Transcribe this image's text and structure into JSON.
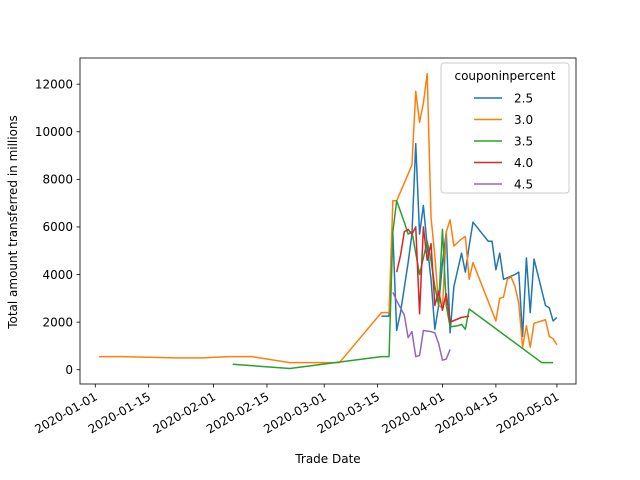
{
  "chart_data": {
    "type": "line",
    "title": "",
    "xlabel": "Trade Date",
    "ylabel": "Total amount transferred in millions",
    "x_axis_type": "date",
    "xlim": [
      "2019-12-28",
      "2020-05-06"
    ],
    "ylim": [
      -600,
      13100
    ],
    "x_ticks": [
      "2020-01-01",
      "2020-01-15",
      "2020-02-01",
      "2020-02-15",
      "2020-03-01",
      "2020-03-15",
      "2020-04-01",
      "2020-04-15",
      "2020-05-01"
    ],
    "y_ticks": [
      0,
      2000,
      4000,
      6000,
      8000,
      10000,
      12000
    ],
    "grid": false,
    "legend": {
      "title": "couponinpercent",
      "position": "top-right"
    },
    "series": [
      {
        "name": "2.5",
        "color": "#1f77b4",
        "points": [
          [
            "2020-03-16",
            2250
          ],
          [
            "2020-03-18",
            2250
          ],
          [
            "2020-03-19",
            5700
          ],
          [
            "2020-03-20",
            1650
          ],
          [
            "2020-03-21",
            2400
          ],
          [
            "2020-03-23",
            4500
          ],
          [
            "2020-03-24",
            5700
          ],
          [
            "2020-03-25",
            9500
          ],
          [
            "2020-03-26",
            5700
          ],
          [
            "2020-03-27",
            6900
          ],
          [
            "2020-03-28",
            5200
          ],
          [
            "2020-03-29",
            3800
          ],
          [
            "2020-03-30",
            1700
          ],
          [
            "2020-03-31",
            2700
          ],
          [
            "2020-04-01",
            4500
          ],
          [
            "2020-04-02",
            5800
          ],
          [
            "2020-04-03",
            1550
          ],
          [
            "2020-04-04",
            3500
          ],
          [
            "2020-04-06",
            4900
          ],
          [
            "2020-04-07",
            4100
          ],
          [
            "2020-04-08",
            5200
          ],
          [
            "2020-04-09",
            6200
          ],
          [
            "2020-04-13",
            5400
          ],
          [
            "2020-04-14",
            5400
          ],
          [
            "2020-04-15",
            4200
          ],
          [
            "2020-04-16",
            4900
          ],
          [
            "2020-04-17",
            3800
          ],
          [
            "2020-04-20",
            4000
          ],
          [
            "2020-04-21",
            4100
          ],
          [
            "2020-04-22",
            1400
          ],
          [
            "2020-04-23",
            4700
          ],
          [
            "2020-04-24",
            2400
          ],
          [
            "2020-04-25",
            4650
          ],
          [
            "2020-04-28",
            2700
          ],
          [
            "2020-04-29",
            2600
          ],
          [
            "2020-04-30",
            2050
          ],
          [
            "2020-05-01",
            2200
          ]
        ]
      },
      {
        "name": "3.0",
        "color": "#ff7f0e",
        "points": [
          [
            "2020-01-02",
            550
          ],
          [
            "2020-01-08",
            550
          ],
          [
            "2020-01-22",
            500
          ],
          [
            "2020-01-29",
            500
          ],
          [
            "2020-02-05",
            550
          ],
          [
            "2020-02-11",
            550
          ],
          [
            "2020-02-21",
            300
          ],
          [
            "2020-03-05",
            300
          ],
          [
            "2020-03-16",
            2400
          ],
          [
            "2020-03-18",
            2400
          ],
          [
            "2020-03-19",
            7100
          ],
          [
            "2020-03-20",
            7100
          ],
          [
            "2020-03-24",
            8600
          ],
          [
            "2020-03-25",
            11700
          ],
          [
            "2020-03-26",
            10400
          ],
          [
            "2020-03-27",
            11200
          ],
          [
            "2020-03-28",
            12450
          ],
          [
            "2020-03-29",
            6400
          ],
          [
            "2020-03-30",
            4800
          ],
          [
            "2020-03-31",
            2700
          ],
          [
            "2020-04-01",
            2600
          ],
          [
            "2020-04-02",
            5800
          ],
          [
            "2020-04-03",
            6300
          ],
          [
            "2020-04-04",
            5200
          ],
          [
            "2020-04-06",
            5500
          ],
          [
            "2020-04-07",
            5600
          ],
          [
            "2020-04-08",
            3800
          ],
          [
            "2020-04-09",
            4500
          ],
          [
            "2020-04-15",
            2050
          ],
          [
            "2020-04-16",
            3000
          ],
          [
            "2020-04-17",
            3050
          ],
          [
            "2020-04-18",
            3800
          ],
          [
            "2020-04-19",
            3900
          ],
          [
            "2020-04-20",
            3500
          ],
          [
            "2020-04-21",
            2800
          ],
          [
            "2020-04-22",
            950
          ],
          [
            "2020-04-23",
            1850
          ],
          [
            "2020-04-24",
            950
          ],
          [
            "2020-04-25",
            1950
          ],
          [
            "2020-04-28",
            2100
          ],
          [
            "2020-04-29",
            1400
          ],
          [
            "2020-04-30",
            1300
          ],
          [
            "2020-05-01",
            1050
          ]
        ]
      },
      {
        "name": "3.5",
        "color": "#2ca02c",
        "points": [
          [
            "2020-02-06",
            230
          ],
          [
            "2020-02-21",
            50
          ],
          [
            "2020-03-16",
            550
          ],
          [
            "2020-03-18",
            550
          ],
          [
            "2020-03-19",
            5800
          ],
          [
            "2020-03-20",
            7100
          ],
          [
            "2020-03-22",
            6200
          ],
          [
            "2020-03-23",
            5700
          ],
          [
            "2020-03-24",
            5800
          ],
          [
            "2020-03-25",
            4900
          ],
          [
            "2020-03-26",
            4000
          ],
          [
            "2020-03-28",
            5400
          ],
          [
            "2020-03-29",
            4600
          ],
          [
            "2020-03-30",
            3500
          ],
          [
            "2020-03-31",
            2700
          ],
          [
            "2020-04-01",
            5900
          ],
          [
            "2020-04-02",
            2700
          ],
          [
            "2020-04-03",
            1800
          ],
          [
            "2020-04-05",
            1850
          ],
          [
            "2020-04-06",
            1900
          ],
          [
            "2020-04-07",
            1700
          ],
          [
            "2020-04-08",
            2550
          ],
          [
            "2020-04-27",
            300
          ],
          [
            "2020-04-30",
            300
          ]
        ]
      },
      {
        "name": "4.0",
        "color": "#d62728",
        "points": [
          [
            "2020-03-20",
            4100
          ],
          [
            "2020-03-21",
            4800
          ],
          [
            "2020-03-22",
            5800
          ],
          [
            "2020-03-23",
            5900
          ],
          [
            "2020-03-24",
            5700
          ],
          [
            "2020-03-25",
            6000
          ],
          [
            "2020-03-26",
            2350
          ],
          [
            "2020-03-27",
            6000
          ],
          [
            "2020-03-28",
            4600
          ],
          [
            "2020-03-29",
            5300
          ],
          [
            "2020-03-30",
            2700
          ],
          [
            "2020-03-31",
            3300
          ],
          [
            "2020-04-01",
            2500
          ],
          [
            "2020-04-02",
            3200
          ],
          [
            "2020-04-03",
            2000
          ],
          [
            "2020-04-06",
            2200
          ],
          [
            "2020-04-08",
            2250
          ]
        ]
      },
      {
        "name": "4.5",
        "color": "#9467bd",
        "points": [
          [
            "2020-03-19",
            3250
          ],
          [
            "2020-03-20",
            2900
          ],
          [
            "2020-03-22",
            2300
          ],
          [
            "2020-03-23",
            1350
          ],
          [
            "2020-03-24",
            1600
          ],
          [
            "2020-03-25",
            550
          ],
          [
            "2020-03-26",
            600
          ],
          [
            "2020-03-27",
            1650
          ],
          [
            "2020-03-29",
            1600
          ],
          [
            "2020-03-30",
            1550
          ],
          [
            "2020-03-31",
            1100
          ],
          [
            "2020-04-01",
            400
          ],
          [
            "2020-04-02",
            450
          ],
          [
            "2020-04-03",
            850
          ]
        ]
      }
    ]
  }
}
